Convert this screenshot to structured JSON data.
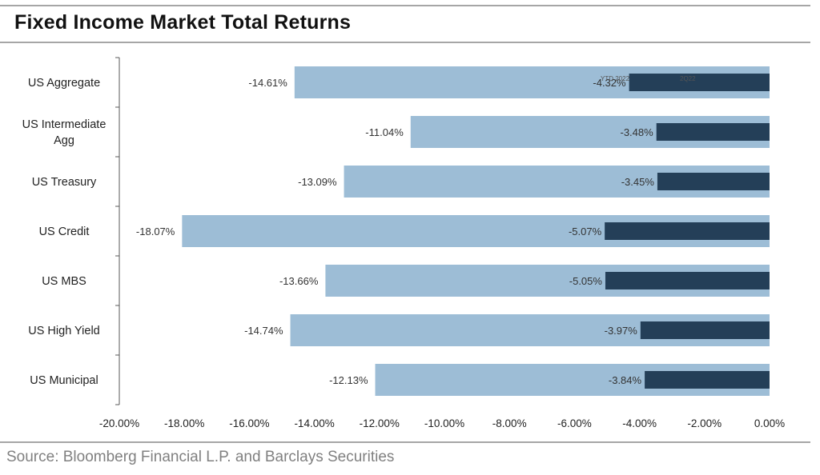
{
  "title": "Fixed Income Market Total Returns",
  "source": "Source: Bloomberg Financial L.P. and Barclays Securities",
  "colors": {
    "series_light": "#9dbdd6",
    "series_dark": "#243f58",
    "axis": "#595959",
    "rule": "#a6a6a6"
  },
  "chart_data": {
    "type": "bar",
    "orientation": "horizontal",
    "categories": [
      "US Aggregate",
      "US Intermediate Agg",
      "US Treasury",
      "US Credit",
      "US MBS",
      "US High Yield",
      "US Municipal"
    ],
    "category_lines": [
      [
        "US Aggregate"
      ],
      [
        "US Intermediate",
        "Agg"
      ],
      [
        "US Treasury"
      ],
      [
        "US Credit"
      ],
      [
        "US MBS"
      ],
      [
        "US High Yield"
      ],
      [
        "US Municipal"
      ]
    ],
    "series": [
      {
        "name": "YTD 2022",
        "values": [
          -14.61,
          -11.04,
          -13.09,
          -18.07,
          -13.66,
          -14.74,
          -12.13
        ],
        "labels": [
          "-14.61%",
          "-11.04%",
          "-13.09%",
          "-18.07%",
          "-13.66%",
          "-14.74%",
          "-12.13%"
        ]
      },
      {
        "name": "2Q22",
        "values": [
          -4.32,
          -3.48,
          -3.45,
          -5.07,
          -5.05,
          -3.97,
          -3.84
        ],
        "labels": [
          "-4.32%",
          "-3.48%",
          "-3.45%",
          "-5.07%",
          "-5.05%",
          "-3.97%",
          "-3.84%"
        ]
      }
    ],
    "xlim": [
      -20,
      0
    ],
    "xticks": [
      -20,
      -18,
      -16,
      -14,
      -12,
      -10,
      -8,
      -6,
      -4,
      -2,
      0
    ],
    "xtick_labels": [
      "-20.00%",
      "-18.00%",
      "-16.00%",
      "-14.00%",
      "-12.00%",
      "-10.00%",
      "-8.00%",
      "-6.00%",
      "-4.00%",
      "-2.00%",
      "0.00%"
    ],
    "xlabel": "",
    "ylabel": "",
    "grid": false,
    "legend_position": "top-right"
  }
}
